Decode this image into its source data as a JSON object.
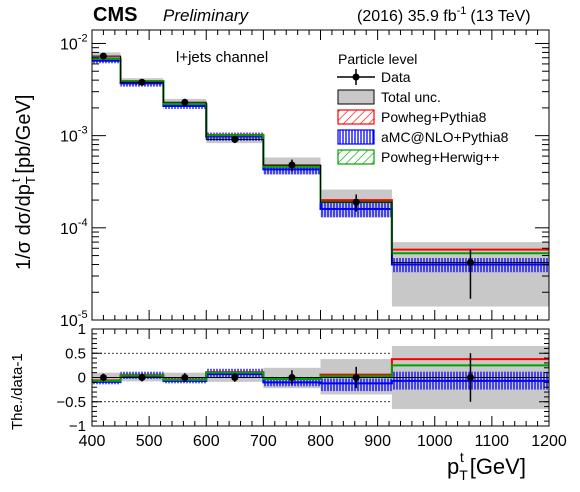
{
  "header": {
    "experiment": "CMS",
    "status": "Preliminary",
    "lumi_label": "(2016) 35.9 fb",
    "lumi_exp": "-1",
    "energy_label": "(13 TeV)"
  },
  "channel_label": "l+jets channel",
  "colors": {
    "data": "#000000",
    "total_unc": "#c8c8c8",
    "powheg_pythia8": "#ff0000",
    "amcnlo_pythia8": "#0000ff",
    "powheg_herwig": "#00a000"
  },
  "chart_data": [
    {
      "type": "line",
      "title": "",
      "ylabel_parts": {
        "main": "1/σ dσ/dp",
        "sup": "t",
        "sub": "T",
        "unit": "[pb/GeV]"
      },
      "yscale": "log",
      "ylim": [
        1e-05,
        0.014
      ],
      "xlim": [
        400,
        1200
      ],
      "y_tick_labels": [
        {
          "value": 0.01,
          "base": "10",
          "exp": "-2"
        },
        {
          "value": 0.001,
          "base": "10",
          "exp": "-3"
        },
        {
          "value": 0.0001,
          "base": "10",
          "exp": "-4"
        },
        {
          "value": 1e-05,
          "base": "10",
          "exp": "-5"
        }
      ],
      "legend": {
        "title": "Particle level",
        "placement": "top-right",
        "entries": [
          "Data",
          "Total unc.",
          "Powheg+Pythia8",
          "aMC@NLO+Pythia8",
          "Powheg+Herwig++"
        ]
      },
      "bin_edges": [
        400,
        450,
        525,
        600,
        700,
        800,
        925,
        1200
      ],
      "data": {
        "x": [
          420,
          487.5,
          562.5,
          650,
          750,
          862.5,
          1062.5
        ],
        "y": [
          0.0073,
          0.0038,
          0.0023,
          0.00091,
          0.00048,
          0.00019,
          4.2e-05
        ],
        "err_low": [
          0.0006,
          0.0003,
          0.0002,
          8e-05,
          7e-05,
          4e-05,
          2.5e-05
        ],
        "err_high": [
          0.0006,
          0.0003,
          0.0002,
          8e-05,
          7e-05,
          4e-05,
          1.6e-05
        ]
      },
      "total_unc": {
        "low": [
          0.0066,
          0.0035,
          0.0021,
          0.00083,
          0.00038,
          0.00013,
          1.4e-05
        ],
        "high": [
          0.008,
          0.0042,
          0.0025,
          0.00099,
          0.00058,
          0.00026,
          7e-05
        ]
      },
      "series": [
        {
          "name": "Powheg+Pythia8",
          "values": [
            0.0069,
            0.0039,
            0.0022,
            0.00102,
            0.00047,
            0.0002,
            5.8e-05
          ]
        },
        {
          "name": "aMC@NLO+Pythia8",
          "values": [
            0.0065,
            0.0037,
            0.0021,
            0.00098,
            0.00043,
            0.00016,
            4e-05
          ],
          "band_low": [
            0.0061,
            0.0034,
            0.00195,
            0.00088,
            0.00038,
            0.00013,
            3.3e-05
          ],
          "band_high": [
            0.0069,
            0.004,
            0.00225,
            0.00108,
            0.00048,
            0.00019,
            4.7e-05
          ]
        },
        {
          "name": "Powheg+Herwig++",
          "values": [
            0.0068,
            0.0039,
            0.0022,
            0.00101,
            0.00046,
            0.00019,
            5.3e-05
          ]
        }
      ]
    },
    {
      "type": "line",
      "title": "",
      "xlabel_parts": {
        "main": "p",
        "sup": "t",
        "sub": "T",
        "unit": "[GeV]"
      },
      "ylabel": "The./data-1",
      "ylim": [
        -1,
        1
      ],
      "xlim": [
        400,
        1200
      ],
      "y_ticks": [
        -1,
        -0.5,
        0,
        0.5,
        1
      ],
      "y_tick_labels": [
        "−1",
        "−0.5",
        "0",
        "0.5",
        "1"
      ],
      "x_ticks": [
        400,
        500,
        600,
        700,
        800,
        900,
        1000,
        1100,
        1200
      ],
      "x_tick_labels": [
        "400",
        "500",
        "600",
        "700",
        "800",
        "900",
        "1000",
        "1100",
        "1200"
      ],
      "bin_edges": [
        400,
        450,
        525,
        600,
        700,
        800,
        925,
        1200
      ],
      "data": {
        "x": [
          420,
          487.5,
          562.5,
          650,
          750,
          862.5,
          1062.5
        ],
        "y": [
          0,
          0,
          0,
          0,
          0,
          0,
          0
        ],
        "err": [
          0.08,
          0.08,
          0.09,
          0.09,
          0.15,
          0.22,
          0.5
        ]
      },
      "total_unc": {
        "low": [
          -0.1,
          -0.08,
          -0.09,
          -0.09,
          -0.22,
          -0.35,
          -0.65
        ],
        "high": [
          0.1,
          0.09,
          0.1,
          0.1,
          0.2,
          0.38,
          0.65
        ]
      },
      "series": [
        {
          "name": "Powheg+Pythia8",
          "values": [
            -0.06,
            0.05,
            -0.04,
            0.11,
            -0.02,
            0.06,
            0.38
          ]
        },
        {
          "name": "aMC@NLO+Pythia8",
          "values": [
            -0.09,
            0.03,
            -0.07,
            0.07,
            -0.1,
            -0.12,
            -0.07
          ],
          "band_low": [
            -0.14,
            -0.03,
            -0.12,
            0.01,
            -0.18,
            -0.28,
            -0.25
          ],
          "band_high": [
            -0.04,
            0.12,
            0.0,
            0.18,
            -0.02,
            -0.02,
            0.12
          ]
        },
        {
          "name": "Powheg+Herwig++",
          "values": [
            -0.07,
            0.04,
            -0.05,
            0.1,
            -0.03,
            0.03,
            0.25
          ]
        }
      ]
    }
  ]
}
